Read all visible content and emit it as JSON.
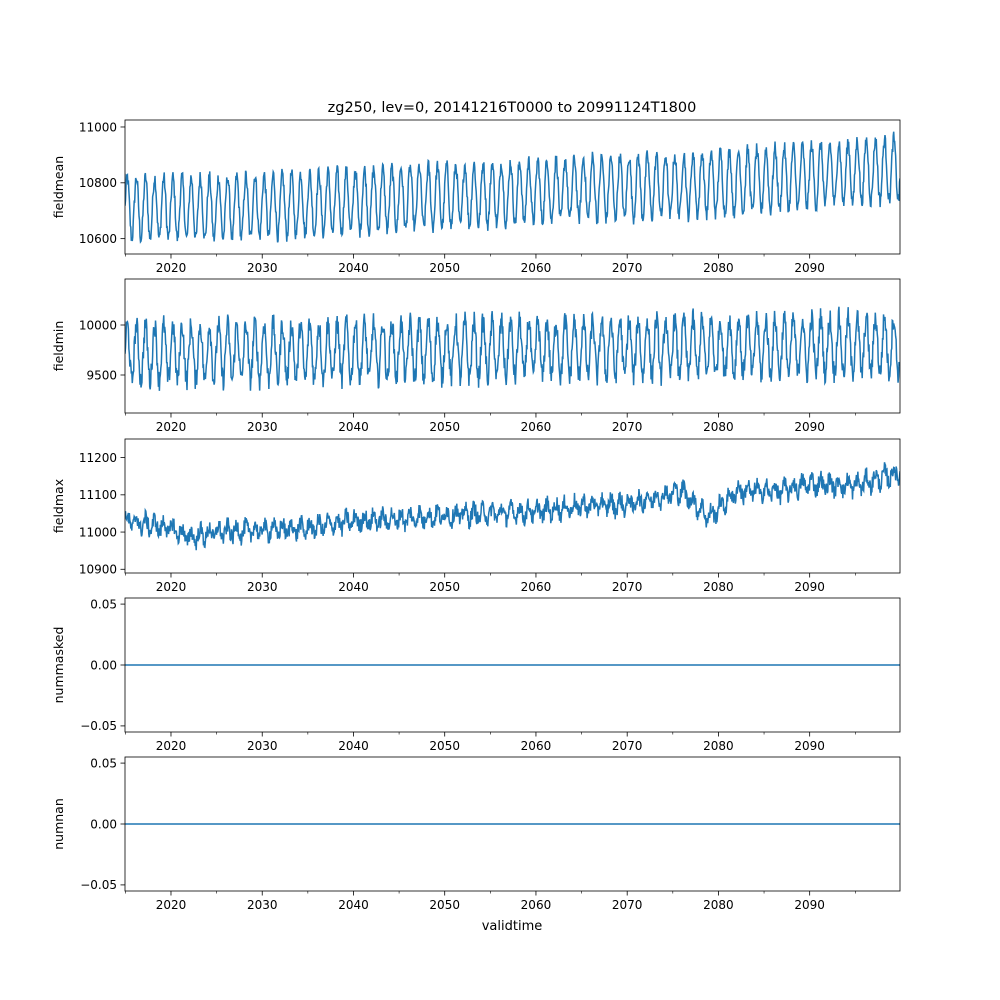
{
  "figure": {
    "title": "zg250, lev=0, 20141216T0000 to 20991124T1800",
    "xlabel": "validtime",
    "line_color": "#1f77b4"
  },
  "chart_data": [
    {
      "type": "line",
      "ylabel": "fieldmean",
      "xlim": [
        2014.96,
        2099.9
      ],
      "ylim": [
        10545,
        11025
      ],
      "x_ticks": [
        "2020",
        "2030",
        "2040",
        "2050",
        "2060",
        "2070",
        "2080",
        "2090"
      ],
      "y_ticks": [
        {
          "value": 10600,
          "label": "10600"
        },
        {
          "value": 10800,
          "label": "10800"
        },
        {
          "value": 11000,
          "label": "11000"
        }
      ],
      "series": [
        {
          "x": [
            2015,
            2025,
            2035,
            2045,
            2055,
            2065,
            2075,
            2085,
            2095,
            2099.9
          ],
          "trend": [
            10710,
            10710,
            10725,
            10745,
            10760,
            10780,
            10790,
            10810,
            10840,
            10850
          ],
          "seasonal_amplitude": 110,
          "noise": 25,
          "period_years": 1
        }
      ],
      "grid": false
    },
    {
      "type": "line",
      "ylabel": "fieldmin",
      "xlim": [
        2014.96,
        2099.9
      ],
      "ylim": [
        9120,
        10460
      ],
      "x_ticks": [
        "2020",
        "2030",
        "2040",
        "2050",
        "2060",
        "2070",
        "2080",
        "2090"
      ],
      "y_ticks": [
        {
          "value": 9500,
          "label": "9500"
        },
        {
          "value": 10000,
          "label": "10000"
        }
      ],
      "series": [
        {
          "x": [
            2015,
            2030,
            2045,
            2060,
            2075,
            2090,
            2099.9
          ],
          "trend": [
            9720,
            9730,
            9745,
            9760,
            9775,
            9790,
            9800
          ],
          "seasonal_amplitude": 280,
          "noise": 110,
          "period_years": 1
        }
      ],
      "grid": false
    },
    {
      "type": "line",
      "ylabel": "fieldmax",
      "xlim": [
        2014.96,
        2099.9
      ],
      "ylim": [
        10890,
        11250
      ],
      "x_ticks": [
        "2020",
        "2030",
        "2040",
        "2050",
        "2060",
        "2070",
        "2080",
        "2090"
      ],
      "y_ticks": [
        {
          "value": 10900,
          "label": "10900"
        },
        {
          "value": 11000,
          "label": "11000"
        },
        {
          "value": 11100,
          "label": "11100"
        },
        {
          "value": 11200,
          "label": "11200"
        }
      ],
      "series": [
        {
          "x": [
            2015,
            2020,
            2022,
            2025,
            2030,
            2035,
            2040,
            2045,
            2050,
            2055,
            2060,
            2065,
            2070,
            2076,
            2079,
            2082,
            2087,
            2090,
            2095,
            2099.9
          ],
          "trend": [
            11030,
            11010,
            10985,
            11000,
            11005,
            11010,
            11030,
            11035,
            11045,
            11050,
            11055,
            11070,
            11075,
            11110,
            11040,
            11110,
            11110,
            11130,
            11125,
            11160
          ],
          "seasonal_amplitude": 18,
          "noise": 22,
          "period_years": 1
        }
      ],
      "grid": false
    },
    {
      "type": "line",
      "ylabel": "nummasked",
      "xlim": [
        2014.96,
        2099.9
      ],
      "ylim": [
        -0.055,
        0.055
      ],
      "x_ticks": [
        "2020",
        "2030",
        "2040",
        "2050",
        "2060",
        "2070",
        "2080",
        "2090"
      ],
      "y_ticks": [
        {
          "value": -0.05,
          "label": "−0.05"
        },
        {
          "value": 0,
          "label": "0.00"
        },
        {
          "value": 0.05,
          "label": "0.05"
        }
      ],
      "series": [
        {
          "x": [
            2014.96,
            2099.9
          ],
          "y": [
            0,
            0
          ]
        }
      ],
      "grid": false
    },
    {
      "type": "line",
      "ylabel": "numnan",
      "xlim": [
        2014.96,
        2099.9
      ],
      "ylim": [
        -0.055,
        0.055
      ],
      "x_ticks": [
        "2020",
        "2030",
        "2040",
        "2050",
        "2060",
        "2070",
        "2080",
        "2090"
      ],
      "y_ticks": [
        {
          "value": -0.05,
          "label": "−0.05"
        },
        {
          "value": 0,
          "label": "0.00"
        },
        {
          "value": 0.05,
          "label": "0.05"
        }
      ],
      "series": [
        {
          "x": [
            2014.96,
            2099.9
          ],
          "y": [
            0,
            0
          ]
        }
      ],
      "grid": false
    }
  ]
}
